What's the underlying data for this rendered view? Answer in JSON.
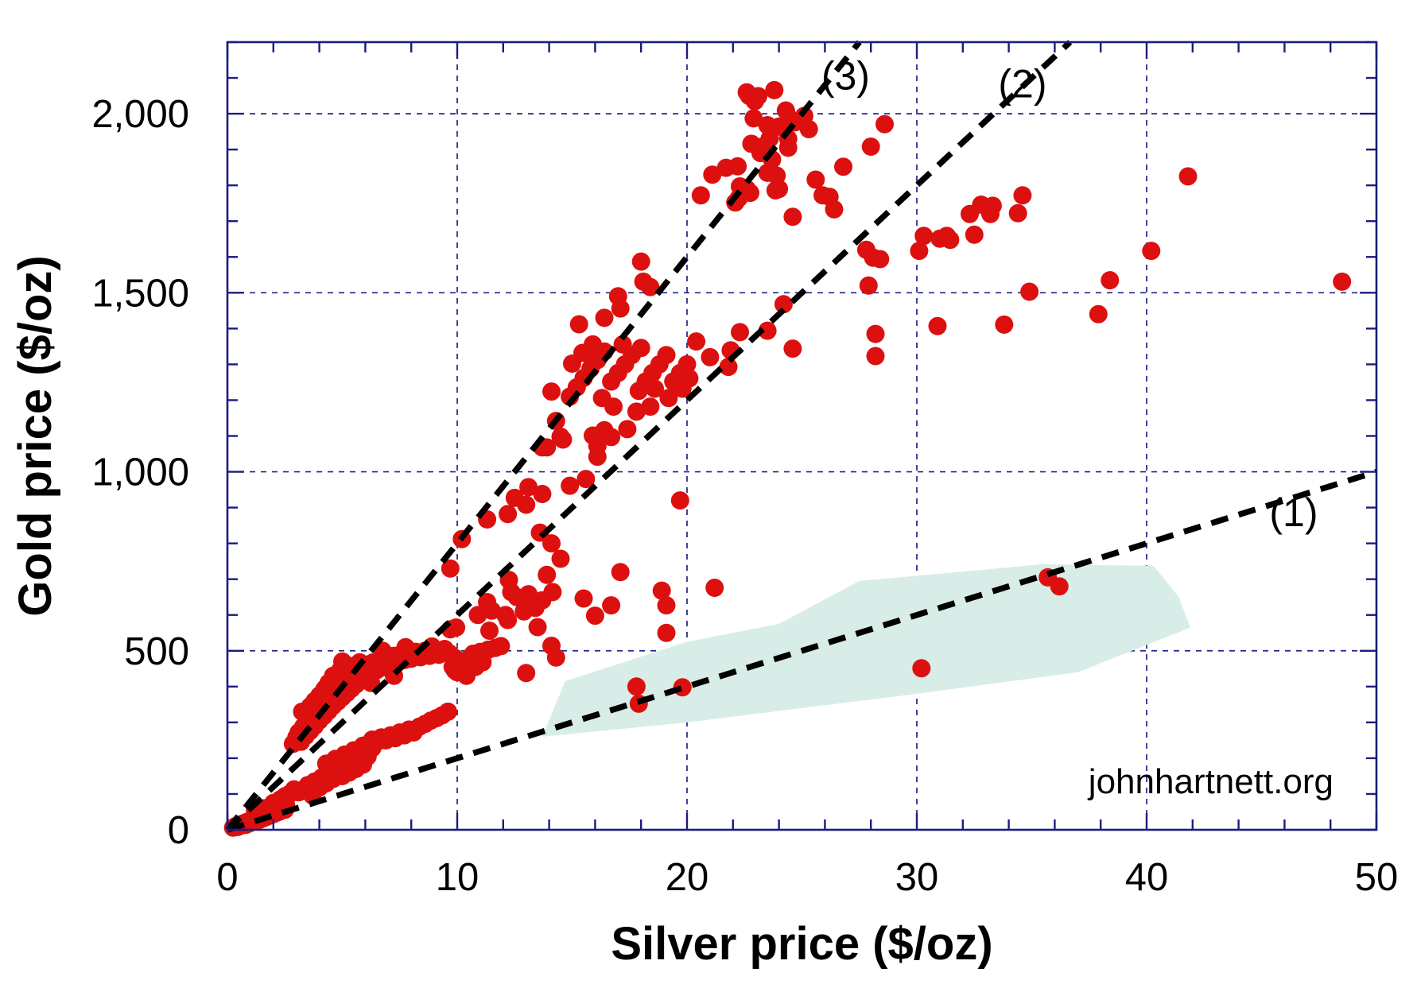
{
  "chart_data": {
    "type": "scatter",
    "title": "",
    "xlabel": "Silver price ($/oz)",
    "ylabel": "Gold price ($/oz)",
    "watermark": "johnhartnett.org",
    "xlim": [
      0,
      50
    ],
    "ylim": [
      0,
      2200
    ],
    "xticks": {
      "major": [
        0,
        10,
        20,
        30,
        40,
        50
      ],
      "labels": [
        "0",
        "10",
        "20",
        "30",
        "40",
        "50"
      ],
      "minor_step": 2
    },
    "yticks": {
      "major": [
        0,
        500,
        1000,
        1500,
        2000
      ],
      "labels": [
        "0",
        "500",
        "1,000",
        "1,500",
        "2,000"
      ],
      "minor_step": 100
    },
    "grid": {
      "x": [
        10,
        20,
        30,
        40
      ],
      "y": [
        500,
        1000,
        1500,
        2000
      ]
    },
    "legend": "none",
    "colors": {
      "point": "#dd1010",
      "ratio_line": "#000000",
      "grid": "#22228b",
      "axis": "#1c1c80",
      "region": "#d8ece8",
      "text": "#000000",
      "background": "#ffffff"
    },
    "ratio_lines": [
      {
        "label": "(1)",
        "gold_to_silver_ratio": 20,
        "label_pos": [
          46.4,
          886
        ]
      },
      {
        "label": "(2)",
        "gold_to_silver_ratio": 60,
        "label_pos": [
          34.6,
          2084
        ]
      },
      {
        "label": "(3)",
        "gold_to_silver_ratio": 80,
        "label_pos": [
          26.9,
          2106
        ]
      }
    ],
    "watermark_pos": [
      42.8,
      135
    ],
    "region_polygon": [
      [
        13.7,
        260
      ],
      [
        14.7,
        415
      ],
      [
        20,
        525
      ],
      [
        24,
        575
      ],
      [
        27.5,
        695
      ],
      [
        31,
        715
      ],
      [
        35.5,
        742
      ],
      [
        40.3,
        737
      ],
      [
        41.4,
        650
      ],
      [
        41.9,
        565
      ],
      [
        37,
        440
      ],
      [
        30,
        380
      ],
      [
        20,
        300
      ]
    ],
    "points": [
      [
        0.25,
        6
      ],
      [
        0.35,
        10
      ],
      [
        0.45,
        8
      ],
      [
        0.5,
        14
      ],
      [
        0.6,
        12
      ],
      [
        0.7,
        18
      ],
      [
        0.8,
        14
      ],
      [
        0.85,
        22
      ],
      [
        0.95,
        18
      ],
      [
        1.0,
        26
      ],
      [
        1.1,
        22
      ],
      [
        1.15,
        30
      ],
      [
        1.25,
        24
      ],
      [
        1.3,
        34
      ],
      [
        1.4,
        28
      ],
      [
        1.45,
        38
      ],
      [
        1.55,
        32
      ],
      [
        1.6,
        42
      ],
      [
        1.7,
        36
      ],
      [
        1.75,
        46
      ],
      [
        1.85,
        40
      ],
      [
        1.9,
        50
      ],
      [
        2.0,
        44
      ],
      [
        2.05,
        55
      ],
      [
        2.15,
        48
      ],
      [
        2.2,
        60
      ],
      [
        2.3,
        52
      ],
      [
        2.4,
        64
      ],
      [
        2.5,
        56
      ],
      [
        2.55,
        70
      ],
      [
        1.2,
        55
      ],
      [
        1.6,
        60
      ],
      [
        2.0,
        75
      ],
      [
        2.3,
        85
      ],
      [
        2.5,
        94
      ],
      [
        2.7,
        100
      ],
      [
        2.9,
        113
      ],
      [
        3.1,
        105
      ],
      [
        3.3,
        112
      ],
      [
        3.5,
        125
      ],
      [
        3.7,
        96
      ],
      [
        3.8,
        135
      ],
      [
        4.0,
        118
      ],
      [
        4.1,
        146
      ],
      [
        4.3,
        130
      ],
      [
        4.5,
        158
      ],
      [
        4.6,
        142
      ],
      [
        4.8,
        165
      ],
      [
        5.0,
        150
      ],
      [
        5.1,
        176
      ],
      [
        5.3,
        160
      ],
      [
        5.45,
        185
      ],
      [
        5.6,
        170
      ],
      [
        5.75,
        196
      ],
      [
        5.9,
        182
      ],
      [
        6.1,
        205
      ],
      [
        6.3,
        252
      ],
      [
        6.5,
        245
      ],
      [
        6.7,
        258
      ],
      [
        6.9,
        250
      ],
      [
        7.1,
        264
      ],
      [
        7.3,
        256
      ],
      [
        7.5,
        272
      ],
      [
        7.7,
        264
      ],
      [
        7.9,
        280
      ],
      [
        8.1,
        272
      ],
      [
        8.35,
        288
      ],
      [
        8.6,
        296
      ],
      [
        8.85,
        305
      ],
      [
        9.1,
        312
      ],
      [
        9.35,
        320
      ],
      [
        9.6,
        330
      ],
      [
        4.3,
        185
      ],
      [
        4.7,
        198
      ],
      [
        5.1,
        210
      ],
      [
        5.5,
        222
      ],
      [
        5.9,
        235
      ],
      [
        6.3,
        228
      ],
      [
        2.85,
        240
      ],
      [
        3.0,
        258
      ],
      [
        3.1,
        272
      ],
      [
        3.2,
        246
      ],
      [
        3.3,
        288
      ],
      [
        3.4,
        262
      ],
      [
        3.5,
        302
      ],
      [
        3.6,
        276
      ],
      [
        3.7,
        316
      ],
      [
        3.8,
        290
      ],
      [
        3.9,
        330
      ],
      [
        4.0,
        305
      ],
      [
        4.1,
        345
      ],
      [
        4.2,
        318
      ],
      [
        4.3,
        358
      ],
      [
        4.4,
        332
      ],
      [
        4.5,
        372
      ],
      [
        4.6,
        346
      ],
      [
        4.7,
        385
      ],
      [
        4.8,
        358
      ],
      [
        4.9,
        398
      ],
      [
        5.0,
        370
      ],
      [
        5.1,
        410
      ],
      [
        5.2,
        382
      ],
      [
        5.3,
        422
      ],
      [
        5.4,
        394
      ],
      [
        5.5,
        434
      ],
      [
        5.6,
        406
      ],
      [
        5.7,
        444
      ],
      [
        5.8,
        416
      ],
      [
        5.9,
        454
      ],
      [
        6.0,
        426
      ],
      [
        6.1,
        462
      ],
      [
        6.2,
        436
      ],
      [
        6.35,
        468
      ],
      [
        6.5,
        446
      ],
      [
        6.65,
        474
      ],
      [
        6.8,
        454
      ],
      [
        6.95,
        480
      ],
      [
        7.1,
        462
      ],
      [
        7.25,
        486
      ],
      [
        7.4,
        468
      ],
      [
        7.55,
        490
      ],
      [
        7.7,
        474
      ],
      [
        7.85,
        494
      ],
      [
        8.0,
        478
      ],
      [
        8.2,
        497
      ],
      [
        8.4,
        482
      ],
      [
        8.6,
        500
      ],
      [
        8.8,
        486
      ],
      [
        9.0,
        503
      ],
      [
        9.2,
        489
      ],
      [
        9.45,
        505
      ],
      [
        9.65,
        493
      ],
      [
        3.25,
        330
      ],
      [
        3.75,
        352
      ],
      [
        4.25,
        395
      ],
      [
        4.75,
        430
      ],
      [
        5.25,
        450
      ],
      [
        5.75,
        468
      ],
      [
        6.25,
        410
      ],
      [
        6.75,
        500
      ],
      [
        7.25,
        430
      ],
      [
        7.75,
        510
      ],
      [
        4.6,
        430
      ],
      [
        4.9,
        445
      ],
      [
        5.2,
        460
      ],
      [
        5.0,
        470
      ],
      [
        4.4,
        410
      ],
      [
        4.2,
        390
      ],
      [
        4.0,
        375
      ],
      [
        3.8,
        360
      ],
      [
        3.6,
        345
      ],
      [
        3.4,
        330
      ],
      [
        9.9,
        480
      ],
      [
        10.2,
        462
      ],
      [
        10.5,
        478
      ],
      [
        10.8,
        455
      ],
      [
        11.1,
        468
      ],
      [
        10.0,
        440
      ],
      [
        9.8,
        455
      ],
      [
        10.4,
        430
      ],
      [
        8.9,
        512
      ],
      [
        9.9,
        445
      ],
      [
        10.3,
        442
      ],
      [
        10.7,
        492
      ],
      [
        11.0,
        497
      ],
      [
        11.35,
        503
      ],
      [
        11.65,
        508
      ],
      [
        11.9,
        513
      ],
      [
        9.7,
        560
      ],
      [
        9.95,
        565
      ],
      [
        10.9,
        600
      ],
      [
        11.3,
        636
      ],
      [
        11.5,
        612
      ],
      [
        12.2,
        586
      ],
      [
        11.4,
        556
      ],
      [
        12.1,
        600
      ],
      [
        12.25,
        698
      ],
      [
        12.35,
        664
      ],
      [
        12.6,
        650
      ],
      [
        13.1,
        658
      ],
      [
        13.4,
        620
      ],
      [
        12.9,
        610
      ],
      [
        13.7,
        641
      ],
      [
        13.5,
        566
      ],
      [
        14.1,
        514
      ],
      [
        14.3,
        481
      ],
      [
        13.0,
        438
      ],
      [
        13.2,
        646
      ],
      [
        14.15,
        664
      ],
      [
        15.5,
        646
      ],
      [
        16.0,
        598
      ],
      [
        16.7,
        627
      ],
      [
        17.1,
        720
      ],
      [
        18.9,
        668
      ],
      [
        19.1,
        627
      ],
      [
        21.2,
        676
      ],
      [
        19.1,
        550
      ],
      [
        17.8,
        400
      ],
      [
        17.9,
        352
      ],
      [
        19.8,
        398
      ],
      [
        9.7,
        730
      ],
      [
        10.2,
        812
      ],
      [
        11.3,
        867
      ],
      [
        12.2,
        882
      ],
      [
        12.5,
        927
      ],
      [
        13.0,
        908
      ],
      [
        13.1,
        957
      ],
      [
        13.7,
        938
      ],
      [
        14.9,
        961
      ],
      [
        15.6,
        980
      ],
      [
        13.6,
        830
      ],
      [
        14.1,
        800
      ],
      [
        14.5,
        757
      ],
      [
        13.9,
        712
      ],
      [
        13.9,
        1068
      ],
      [
        14.6,
        1090
      ],
      [
        16.1,
        1042
      ],
      [
        16.1,
        1072
      ],
      [
        13.7,
        1068
      ],
      [
        14.1,
        1224
      ],
      [
        14.3,
        1142
      ],
      [
        14.5,
        1098
      ],
      [
        15.9,
        1101
      ],
      [
        16.4,
        1116
      ],
      [
        16.7,
        1097
      ],
      [
        17.4,
        1119
      ],
      [
        17.8,
        1168
      ],
      [
        18.4,
        1182
      ],
      [
        15.3,
        1412
      ],
      [
        16.4,
        1430
      ],
      [
        17.0,
        1490
      ],
      [
        17.1,
        1456
      ],
      [
        18.0,
        1587
      ],
      [
        18.1,
        1531
      ],
      [
        18.4,
        1516
      ],
      [
        14.9,
        1210
      ],
      [
        15.2,
        1236
      ],
      [
        15.5,
        1262
      ],
      [
        15.8,
        1288
      ],
      [
        16.1,
        1312
      ],
      [
        16.4,
        1336
      ],
      [
        16.7,
        1252
      ],
      [
        17.0,
        1276
      ],
      [
        17.3,
        1300
      ],
      [
        17.6,
        1326
      ],
      [
        17.9,
        1226
      ],
      [
        18.2,
        1252
      ],
      [
        18.5,
        1276
      ],
      [
        18.8,
        1300
      ],
      [
        19.1,
        1326
      ],
      [
        19.4,
        1252
      ],
      [
        19.7,
        1276
      ],
      [
        20.0,
        1300
      ],
      [
        15.0,
        1302
      ],
      [
        15.45,
        1332
      ],
      [
        15.9,
        1356
      ],
      [
        16.3,
        1206
      ],
      [
        16.8,
        1182
      ],
      [
        17.2,
        1356
      ],
      [
        18.0,
        1346
      ],
      [
        18.6,
        1232
      ],
      [
        19.2,
        1206
      ],
      [
        19.8,
        1232
      ],
      [
        20.4,
        1364
      ],
      [
        21.0,
        1320
      ],
      [
        21.9,
        1339
      ],
      [
        21.8,
        1293
      ],
      [
        20.1,
        1261
      ],
      [
        19.7,
        920
      ],
      [
        22.7,
        2050
      ],
      [
        22.95,
        2035
      ],
      [
        23.8,
        2066
      ],
      [
        22.9,
        1987
      ],
      [
        24.3,
        2009
      ],
      [
        24.45,
        1987
      ],
      [
        24.7,
        1976
      ],
      [
        25.1,
        1994
      ],
      [
        25.3,
        1957
      ],
      [
        23.5,
        1968
      ],
      [
        24.0,
        1964
      ],
      [
        24.4,
        1930
      ],
      [
        23.6,
        1931
      ],
      [
        22.8,
        1916
      ],
      [
        23.3,
        1909
      ],
      [
        23.5,
        1898
      ],
      [
        23.7,
        1872
      ],
      [
        23.2,
        1890
      ],
      [
        24.4,
        1905
      ],
      [
        21.1,
        1830
      ],
      [
        21.7,
        1849
      ],
      [
        22.2,
        1853
      ],
      [
        22.3,
        1797
      ],
      [
        22.6,
        1790
      ],
      [
        22.75,
        1779
      ],
      [
        22.1,
        1752
      ],
      [
        22.25,
        1764
      ],
      [
        23.5,
        1835
      ],
      [
        23.9,
        1827
      ],
      [
        24.0,
        1790
      ],
      [
        23.85,
        1786
      ],
      [
        25.6,
        1816
      ],
      [
        25.9,
        1772
      ],
      [
        26.2,
        1768
      ],
      [
        26.4,
        1733
      ],
      [
        24.6,
        1712
      ],
      [
        26.8,
        1852
      ],
      [
        28.0,
        1908
      ],
      [
        28.6,
        1971
      ],
      [
        27.8,
        1620
      ],
      [
        28.1,
        1598
      ],
      [
        28.4,
        1594
      ],
      [
        22.6,
        2060
      ],
      [
        23.1,
        2049
      ],
      [
        20.6,
        1772
      ],
      [
        30.3,
        1659
      ],
      [
        30.1,
        1617
      ],
      [
        31.0,
        1651
      ],
      [
        31.3,
        1659
      ],
      [
        31.45,
        1648
      ],
      [
        32.5,
        1662
      ],
      [
        32.3,
        1720
      ],
      [
        32.8,
        1746
      ],
      [
        33.3,
        1743
      ],
      [
        33.2,
        1720
      ],
      [
        34.6,
        1772
      ],
      [
        34.4,
        1722
      ],
      [
        34.9,
        1503
      ],
      [
        38.4,
        1535
      ],
      [
        40.2,
        1617
      ],
      [
        37.9,
        1440
      ],
      [
        41.8,
        1825
      ],
      [
        30.9,
        1407
      ],
      [
        33.8,
        1411
      ],
      [
        48.5,
        1531
      ],
      [
        22.3,
        1390
      ],
      [
        23.5,
        1394
      ],
      [
        24.2,
        1468
      ],
      [
        24.6,
        1344
      ],
      [
        27.9,
        1520
      ],
      [
        28.2,
        1385
      ],
      [
        28.2,
        1323
      ],
      [
        30.2,
        451
      ],
      [
        35.7,
        705
      ],
      [
        36.2,
        680
      ]
    ]
  }
}
